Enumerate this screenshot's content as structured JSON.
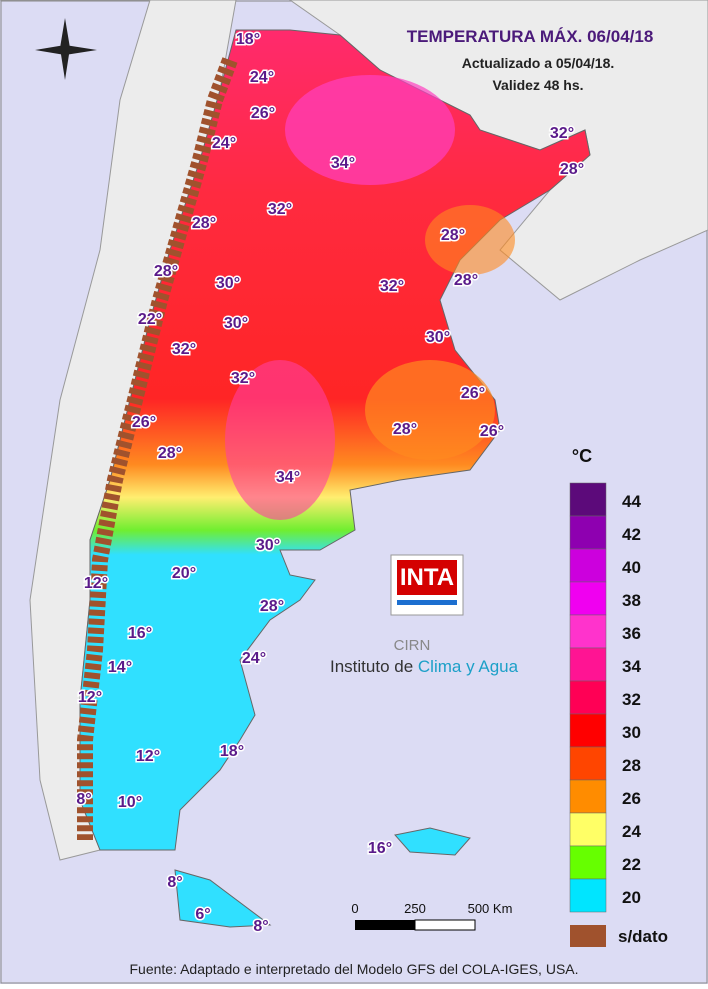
{
  "header": {
    "title": "TEMPERATURA MÁX. 06/04/18",
    "updated": "Actualizado a 05/04/18.",
    "validity": "Validez 48 hs."
  },
  "map_labels": [
    "18°",
    "24°",
    "26°",
    "24°",
    "34°",
    "32°",
    "28°",
    "32°",
    "28°",
    "28°",
    "28°",
    "30°",
    "32°",
    "28°",
    "22°",
    "30°",
    "32°",
    "30°",
    "32°",
    "26°",
    "26°",
    "28°",
    "26°",
    "28°",
    "34°",
    "30°",
    "20°",
    "12°",
    "28°",
    "16°",
    "24°",
    "14°",
    "12°",
    "18°",
    "12°",
    "8°",
    "10°",
    "16°",
    "8°",
    "6°",
    "8°"
  ],
  "legend": {
    "unit": "°C",
    "items": [
      {
        "label": "44",
        "color": "#5c0a7a"
      },
      {
        "label": "42",
        "color": "#8e00b0"
      },
      {
        "label": "40",
        "color": "#cc00dd"
      },
      {
        "label": "38",
        "color": "#f000f0"
      },
      {
        "label": "36",
        "color": "#ff33cc"
      },
      {
        "label": "34",
        "color": "#ff1493"
      },
      {
        "label": "32",
        "color": "#ff0055"
      },
      {
        "label": "30",
        "color": "#ff0000"
      },
      {
        "label": "28",
        "color": "#ff4500"
      },
      {
        "label": "26",
        "color": "#ff8c00"
      },
      {
        "label": "24",
        "color": "#ffff66"
      },
      {
        "label": "22",
        "color": "#66ff00"
      },
      {
        "label": "20",
        "color": "#00e5ff"
      }
    ],
    "no_data": "s/dato"
  },
  "scale": {
    "labels": [
      "0",
      "250",
      "500 Km"
    ]
  },
  "logo": {
    "mark": "INTA",
    "sub": "CIRN",
    "institute": "Instituto de",
    "institute_accent": "Clima y Agua"
  },
  "source": "Fuente: Adaptado e interpretado del Modelo GFS del COLA-IGES, USA."
}
